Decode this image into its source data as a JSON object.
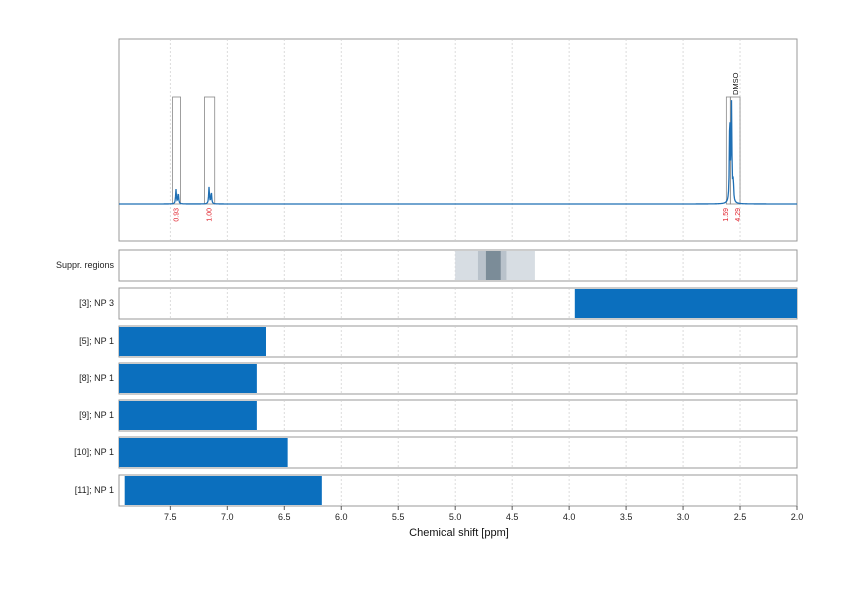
{
  "chart_data": {
    "type": "nmr-spectrum-with-compound-ranges",
    "xlabel": "Chemical shift [ppm]",
    "xlim": [
      7.95,
      2.0
    ],
    "x_ticks": [
      "7.5",
      "7.0",
      "6.5",
      "6.0",
      "5.5",
      "5.0",
      "4.5",
      "4.0",
      "3.5",
      "3.0",
      "2.5",
      "2.0"
    ],
    "grid": true,
    "colors": {
      "spectrum": "#1f6fb4",
      "bar": "#0b6fbe",
      "box": "#888888",
      "integral": "#e0202a",
      "grid": "#cccccc"
    },
    "spectrum": {
      "peaks": [
        {
          "shift": 7.45,
          "height": 0.14
        },
        {
          "shift": 7.43,
          "height": 0.11
        },
        {
          "shift": 7.16,
          "height": 0.16
        },
        {
          "shift": 7.14,
          "height": 0.12
        },
        {
          "shift": 2.59,
          "height": 0.88
        },
        {
          "shift": 2.575,
          "height": 0.93
        },
        {
          "shift": 2.56,
          "height": 0.2
        }
      ],
      "integral_regions": [
        {
          "from": 7.48,
          "to": 7.41,
          "label": "0.93"
        },
        {
          "from": 7.2,
          "to": 7.11,
          "label": "1.00"
        },
        {
          "from": 2.62,
          "to": 2.585,
          "label": "1.59"
        },
        {
          "from": 2.585,
          "to": 2.5,
          "label": "4.29",
          "annotation": "DMSO"
        }
      ]
    },
    "suppressed_regions": {
      "label": "Suppr. regions",
      "bands": [
        {
          "from": 5.0,
          "to": 4.3,
          "shade": "#d7dde3"
        },
        {
          "from": 4.8,
          "to": 4.55,
          "shade": "#b9c2cb"
        },
        {
          "from": 4.73,
          "to": 4.6,
          "shade": "#7b8c98"
        }
      ]
    },
    "ranges": [
      {
        "label": "[3]; NP 3",
        "from": 3.95,
        "to": 2.0
      },
      {
        "label": "[5]; NP 1",
        "from": 7.95,
        "to": 6.66
      },
      {
        "label": "[8]; NP 1",
        "from": 7.95,
        "to": 6.74
      },
      {
        "label": "[9]; NP 1",
        "from": 7.95,
        "to": 6.74
      },
      {
        "label": "[10]; NP 1",
        "from": 7.95,
        "to": 6.47
      },
      {
        "label": "[11]; NP 1",
        "from": 7.9,
        "to": 6.17
      }
    ]
  }
}
